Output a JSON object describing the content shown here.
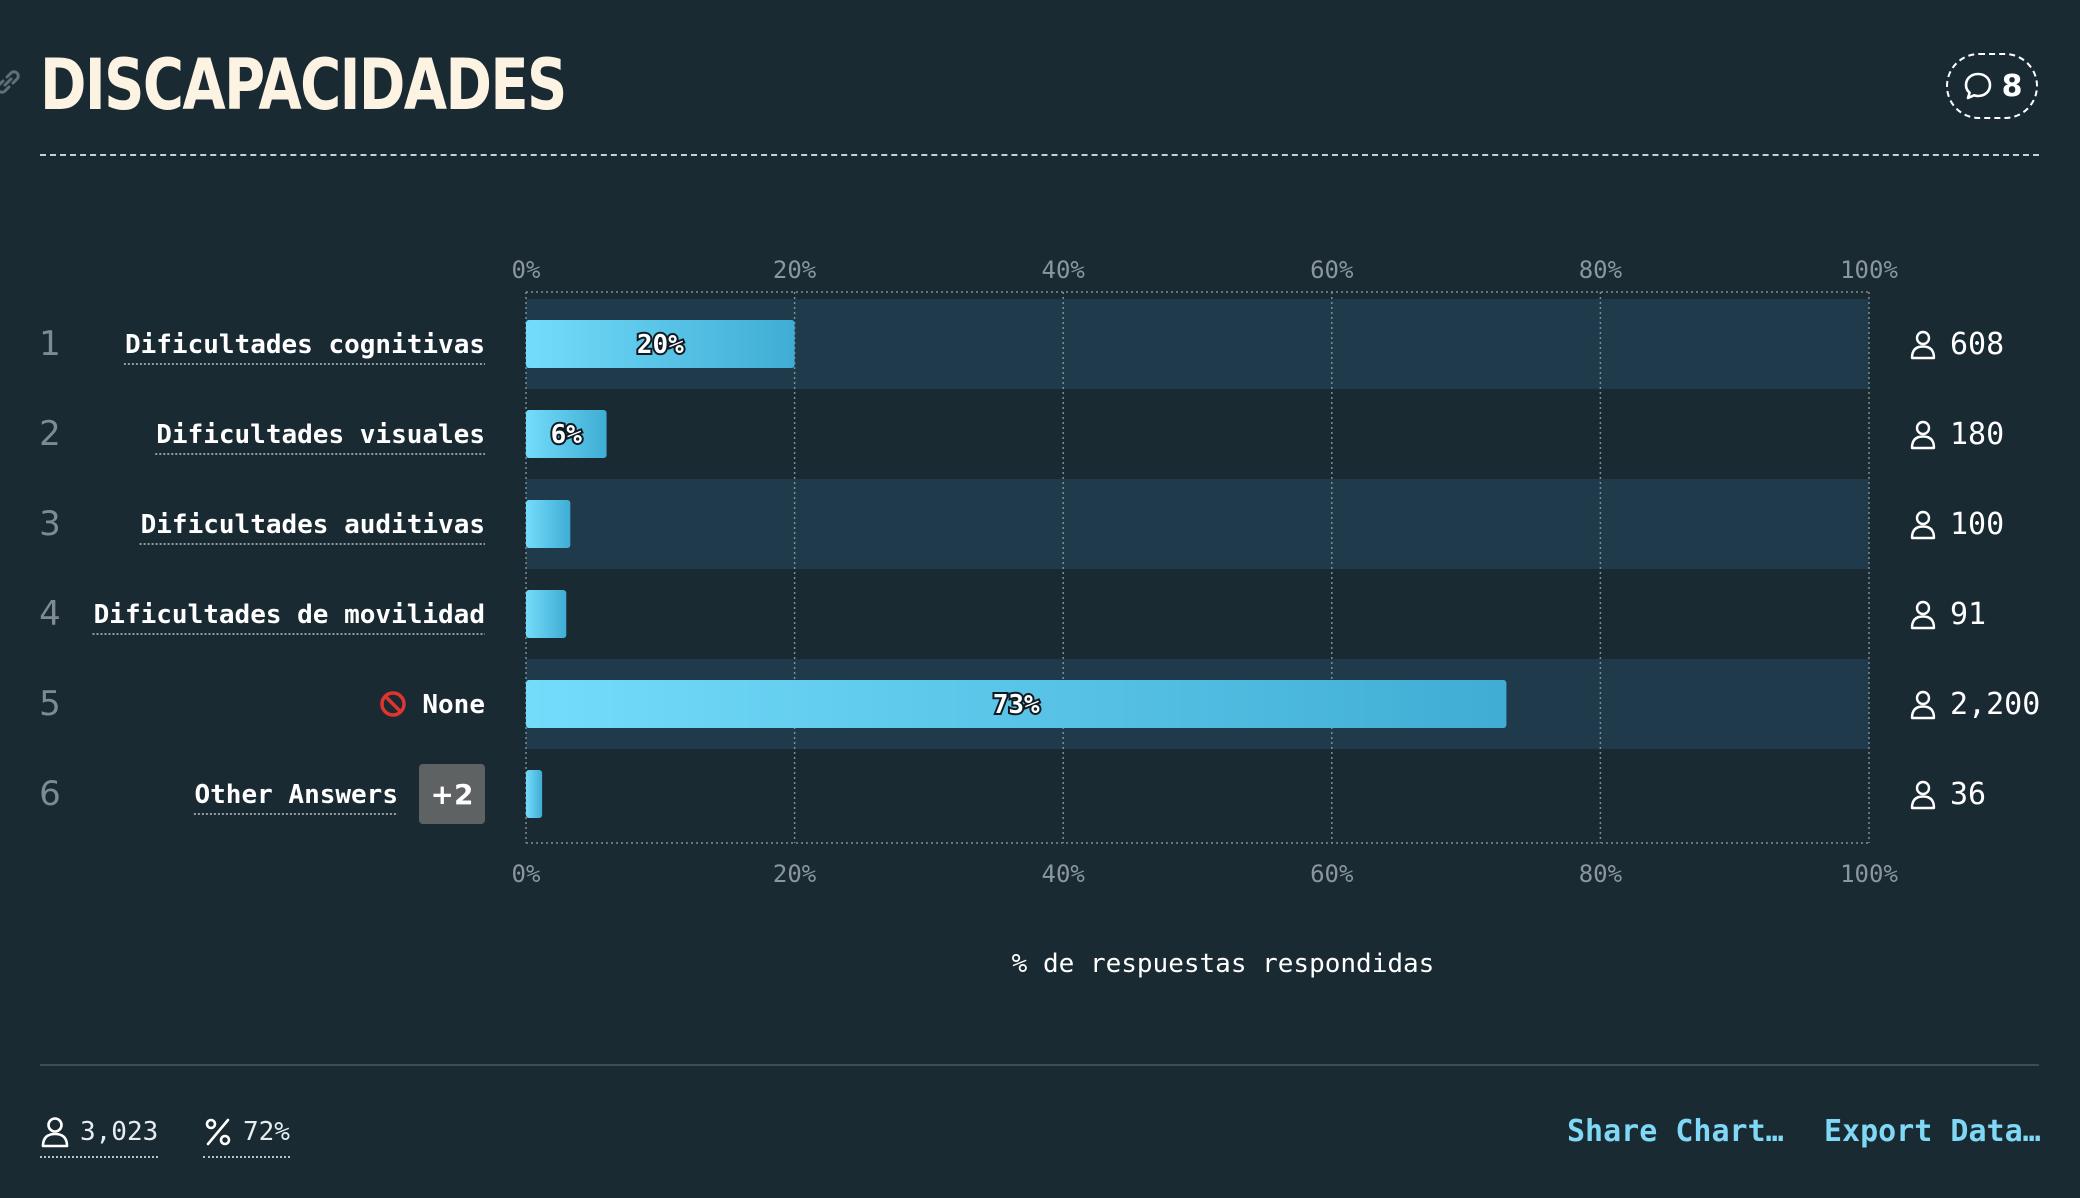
{
  "header": {
    "title": "DISCAPACIDADES",
    "comments_count": "8",
    "icons": {
      "permalink": "link-icon",
      "comments": "speech-bubble-icon"
    }
  },
  "chart_data": {
    "type": "bar",
    "orientation": "horizontal",
    "categories": [
      "Dificultades cognitivas",
      "Dificultades visuales",
      "Dificultades auditivas",
      "Dificultades de movilidad",
      "None",
      "Other Answers"
    ],
    "ranks": [
      "1",
      "2",
      "3",
      "4",
      "5",
      "6"
    ],
    "values": [
      20,
      6,
      3.3,
      3,
      73,
      1.2
    ],
    "value_labels": [
      "20%",
      "6%",
      "",
      "",
      "73%",
      ""
    ],
    "counts": [
      "608",
      "180",
      "100",
      "91",
      "2,200",
      "36"
    ],
    "none_icon": "no-entry-icon",
    "other_answers_badge": "+2",
    "xlabel": "% de respuestas respondidas",
    "xlim": [
      0,
      100
    ],
    "x_ticks": [
      "0%",
      "20%",
      "40%",
      "60%",
      "80%",
      "100%"
    ],
    "grid": true,
    "colors": {
      "bar_start": "#74dcfb",
      "bar_end": "#3fadd4",
      "row_band": "#1f3a4a",
      "background": "#1a2a33"
    }
  },
  "footer": {
    "respondents": "3,023",
    "percent_answered": "72%",
    "share_label": "Share Chart…",
    "export_label": "Export Data…",
    "icons": {
      "respondents": "person-icon",
      "percent": "percent-icon"
    }
  }
}
